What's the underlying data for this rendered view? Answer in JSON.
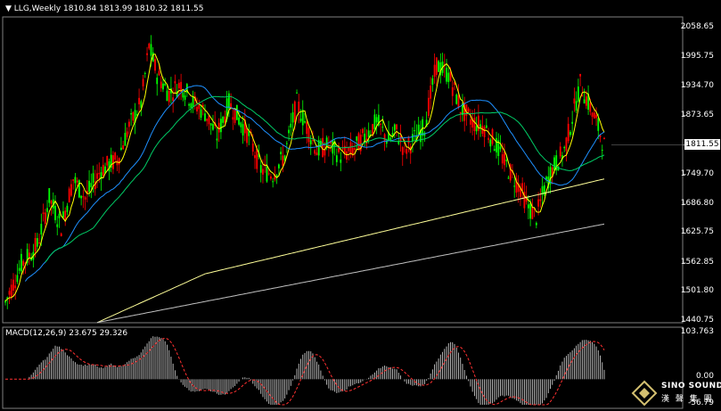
{
  "header": {
    "symbol_period": "LLG,Weekly",
    "ohlc": "1810.84 1813.99 1810.32 1811.55"
  },
  "price_axis": {
    "ticks": [
      "2058.65",
      "1995.75",
      "1934.70",
      "1873.65",
      "1811.55",
      "1749.70",
      "1686.80",
      "1625.75",
      "1562.85",
      "1501.80",
      "1440.75"
    ],
    "current_price": "1811.55",
    "min": 1440.75,
    "max": 2058.65
  },
  "macd": {
    "label": "MACD(12,26,9) 23.675 29.326",
    "axis_top": "103.763",
    "axis_zero": "0.00",
    "axis_bottom": "-56.79",
    "max": 103.763,
    "min": -56.79
  },
  "logo": {
    "brand_en": "SINO SOUND",
    "brand_cn": "漢 聲 集 團"
  },
  "colors": {
    "background": "#000000",
    "bull_candle": "#00ff00",
    "bear_candle": "#ff0000",
    "ma_fast": "#ffff00",
    "ma_mid1": "#1e90ff",
    "ma_mid2": "#00cc66",
    "ma_slow": "#ffff99",
    "ma_slowest": "#c0c0c0",
    "macd_signal": "#ff3030",
    "macd_hist": "#c8c8c8",
    "grid": "#808080"
  }
}
